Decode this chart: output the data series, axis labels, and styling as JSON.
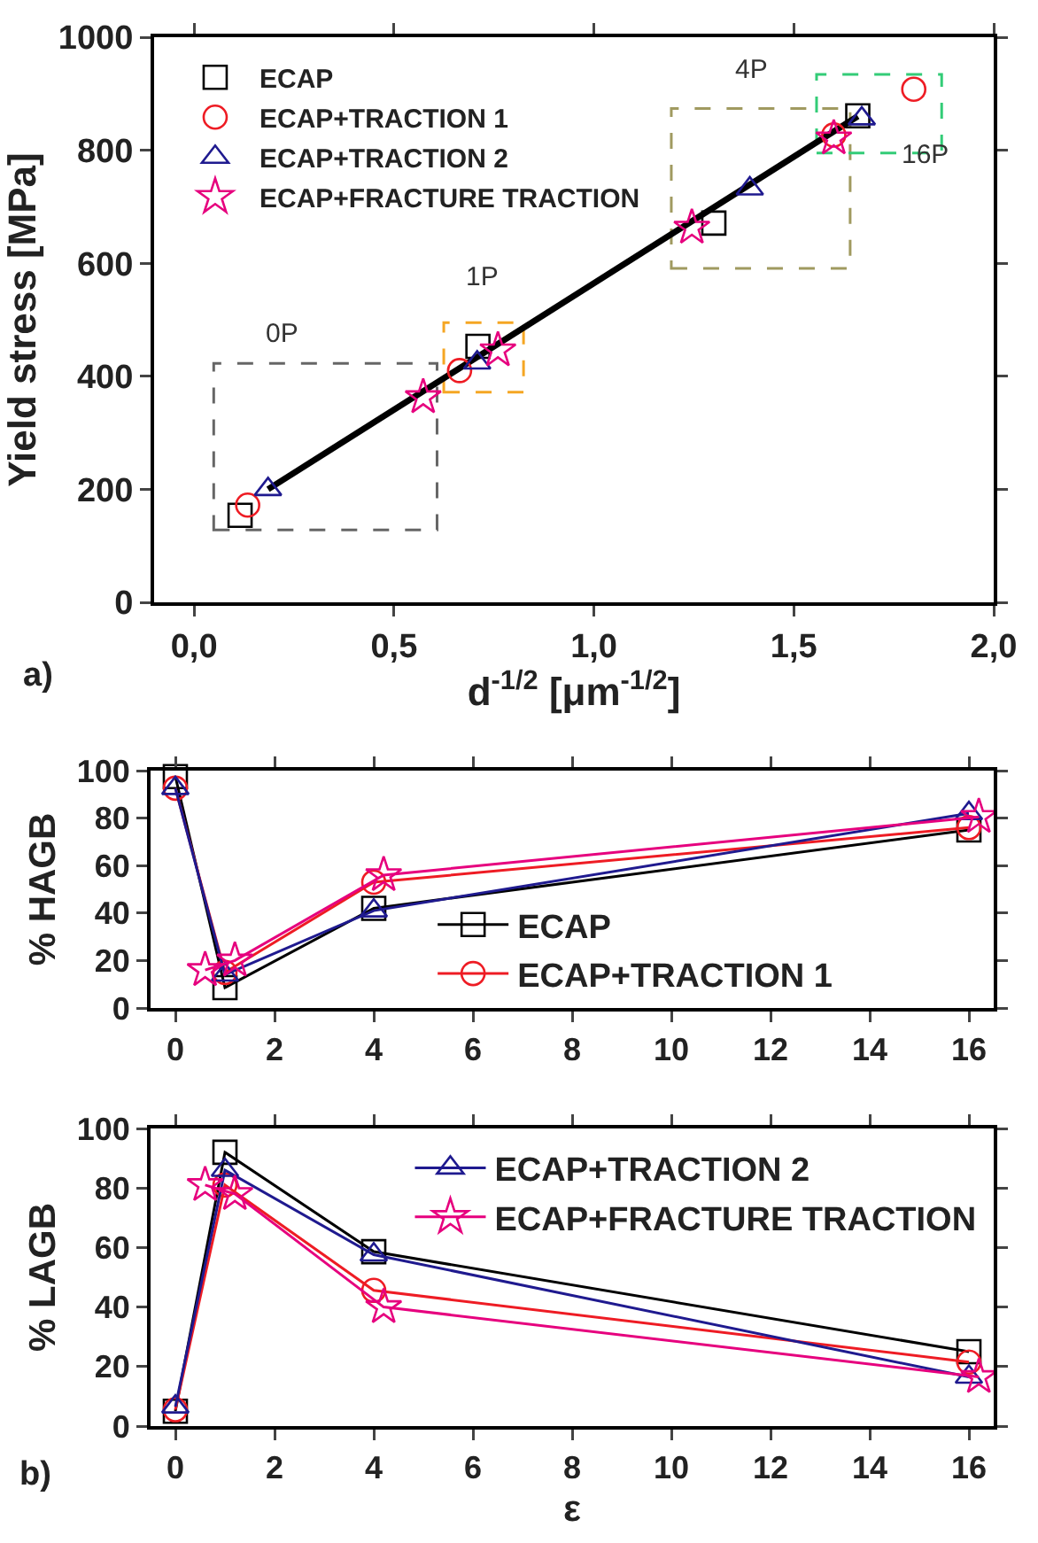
{
  "chart_data": [
    {
      "type": "scatter",
      "xlabel": "d$^{-1/2}$ [μm$^{-1/2}$]",
      "ylabel": "Yield stress [MPa]",
      "xlim": [
        -0.1,
        2.0
      ],
      "ylim": [
        0,
        1000
      ],
      "xticks": [
        {
          "value": 0,
          "label": "0,0"
        },
        {
          "value": 0.5,
          "label": "0,5"
        },
        {
          "value": 1,
          "label": "1,0"
        },
        {
          "value": 1.5,
          "label": "1,5"
        },
        {
          "value": 2,
          "label": "2,0"
        }
      ],
      "yticks": [
        0,
        200,
        400,
        600,
        800,
        1000
      ],
      "legend": "top left",
      "annotations": [
        "0P",
        "1P",
        "4P",
        "16P",
        "a)"
      ],
      "series": [
        {
          "type": "line",
          "color": "#000000",
          "marker": "none",
          "line_style": "solid",
          "x": [
            0.185,
            1.66
          ],
          "values": [
            200,
            860
          ]
        },
        {
          "name": "ECAP",
          "color": "#000000",
          "marker": "square",
          "x": [
            0.115,
            0.71,
            1.3,
            1.66
          ],
          "values": [
            154,
            453,
            671,
            861
          ]
        },
        {
          "name": "ECAP+TRACTION 1",
          "color": "#ee1c24",
          "marker": "circle",
          "x": [
            0.134,
            0.664,
            1.6,
            1.8
          ],
          "values": [
            172,
            410,
            827,
            908
          ]
        },
        {
          "name": "ECAP+TRACTION 2",
          "color": "#1f1a8f",
          "marker": "triangle",
          "x": [
            0.185,
            0.708,
            1.39,
            1.67
          ],
          "values": [
            200,
            424,
            732,
            856
          ]
        },
        {
          "name": "ECAP+FRACTURE TRACTION",
          "color": "#e6007e",
          "marker": "star",
          "x": [
            0.573,
            0.76,
            1.245,
            1.6
          ],
          "values": [
            363,
            446,
            663,
            821
          ]
        }
      ]
    },
    {
      "type": "line",
      "ylabel": "% HAGB",
      "xlim": [
        -0.5,
        16.5
      ],
      "ylim": [
        0,
        100
      ],
      "xticks": [
        0,
        2,
        4,
        6,
        8,
        10,
        12,
        14,
        16
      ],
      "yticks": [
        0,
        20,
        40,
        60,
        80,
        100
      ],
      "legend": "bottom",
      "line_style": "solid",
      "series": [
        {
          "name": "ECAP",
          "color": "#000000",
          "marker": "square",
          "x": [
            0,
            1,
            4,
            16
          ],
          "values": [
            97.5,
            8.6,
            42,
            75
          ]
        },
        {
          "name": "ECAP+TRACTION 1",
          "color": "#ee1c24",
          "marker": "circle",
          "x": [
            0,
            1,
            4,
            16
          ],
          "values": [
            92.6,
            15,
            53,
            76
          ]
        },
        {
          "color": "#1f1a8f",
          "marker": "triangle",
          "x": [
            0,
            1,
            4,
            16
          ],
          "values": [
            92.6,
            14,
            41,
            82
          ]
        },
        {
          "color": "#e6007e",
          "marker": "star",
          "x": [
            0.6,
            1.2,
            4.2,
            16.2
          ],
          "values": [
            16,
            20,
            56,
            80.5
          ]
        }
      ]
    },
    {
      "type": "line",
      "ylabel": "% LAGB",
      "xlabel": "ε",
      "xlim": [
        -0.5,
        16.5
      ],
      "ylim": [
        0,
        100
      ],
      "xticks": [
        0,
        2,
        4,
        6,
        8,
        10,
        12,
        14,
        16
      ],
      "yticks": [
        0,
        20,
        40,
        60,
        80,
        100
      ],
      "legend": "top right",
      "line_style": "solid",
      "annotations": [
        "b)"
      ],
      "series": [
        {
          "color": "#000000",
          "marker": "square",
          "x": [
            0,
            1,
            4,
            16
          ],
          "values": [
            5,
            92,
            58.6,
            25
          ]
        },
        {
          "color": "#ee1c24",
          "marker": "circle",
          "x": [
            0,
            1,
            4,
            16
          ],
          "values": [
            5.5,
            81,
            45.6,
            21.5
          ]
        },
        {
          "name": "ECAP+TRACTION 2",
          "color": "#1f1a8f",
          "marker": "triangle",
          "x": [
            0,
            1,
            4,
            16
          ],
          "values": [
            6.5,
            86,
            57.6,
            16.5
          ]
        },
        {
          "name": "ECAP+FRACTURE TRACTION",
          "color": "#e6007e",
          "marker": "star",
          "x": [
            0.6,
            1.2,
            4.2,
            16.2
          ],
          "values": [
            81,
            78,
            40,
            16.5
          ]
        }
      ]
    }
  ]
}
